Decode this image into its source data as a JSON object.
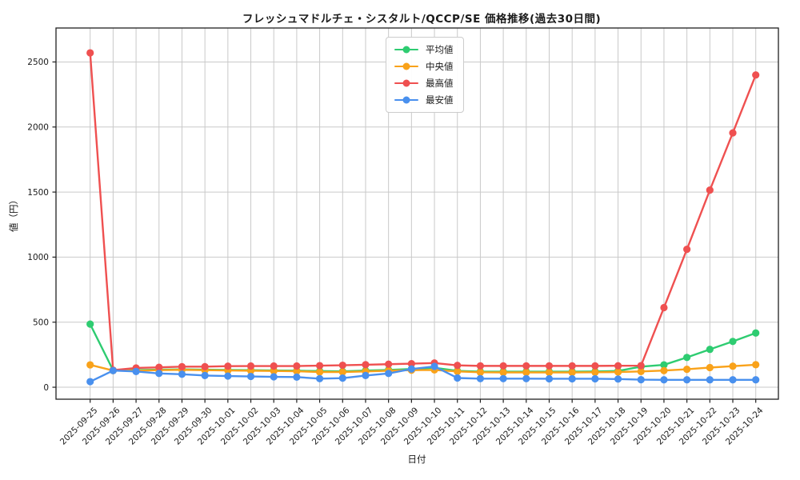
{
  "title": "フレッシュマドルチェ・シスタルト/QCCP/SE 価格推移(過去30日間)",
  "chart_data": {
    "type": "line",
    "title": "フレッシュマドルチェ・シスタルト/QCCP/SE 価格推移(過去30日間)",
    "xlabel": "日付",
    "ylabel": "値（円）",
    "grid": true,
    "legend_position": "upper center",
    "ylim": [
      -92,
      2761
    ],
    "yticks": [
      0,
      500,
      1000,
      1500,
      2000,
      2500
    ],
    "x": [
      "2025-09-25",
      "2025-09-26",
      "2025-09-27",
      "2025-09-28",
      "2025-09-29",
      "2025-09-30",
      "2025-10-01",
      "2025-10-02",
      "2025-10-03",
      "2025-10-04",
      "2025-10-05",
      "2025-10-06",
      "2025-10-07",
      "2025-10-08",
      "2025-10-09",
      "2025-10-10",
      "2025-10-11",
      "2025-10-12",
      "2025-10-13",
      "2025-10-14",
      "2025-10-15",
      "2025-10-16",
      "2025-10-17",
      "2025-10-18",
      "2025-10-19",
      "2025-10-20",
      "2025-10-21",
      "2025-10-22",
      "2025-10-23",
      "2025-10-24"
    ],
    "series": [
      {
        "name": "平均値",
        "id": "mean",
        "color": "#2ecc71",
        "values": [
          485,
          130,
          132,
          135,
          137,
          135,
          133,
          131,
          129,
          127,
          124,
          122,
          128,
          133,
          140,
          150,
          126,
          120,
          120,
          120,
          120,
          120,
          121,
          125,
          158,
          172,
          229,
          291,
          352,
          417
        ]
      },
      {
        "name": "中央値",
        "id": "median",
        "color": "#f9a21a",
        "values": [
          172,
          128,
          127,
          131,
          134,
          131,
          129,
          127,
          125,
          123,
          117,
          117,
          121,
          127,
          131,
          133,
          121,
          115,
          114,
          114,
          114,
          114,
          115,
          117,
          121,
          128,
          138,
          151,
          162,
          173
        ]
      },
      {
        "name": "最高値",
        "id": "max",
        "color": "#ef5050",
        "values": [
          2570,
          131,
          148,
          153,
          158,
          158,
          162,
          163,
          163,
          163,
          166,
          169,
          173,
          177,
          181,
          186,
          168,
          164,
          164,
          164,
          164,
          164,
          164,
          165,
          166,
          612,
          1060,
          1515,
          1955,
          2400
        ]
      },
      {
        "name": "最安値",
        "id": "min",
        "color": "#4990ee",
        "values": [
          43,
          128,
          121,
          106,
          100,
          90,
          86,
          83,
          80,
          78,
          66,
          70,
          90,
          106,
          140,
          160,
          71,
          66,
          66,
          66,
          65,
          65,
          65,
          63,
          58,
          57,
          57,
          57,
          57,
          57
        ]
      }
    ]
  }
}
